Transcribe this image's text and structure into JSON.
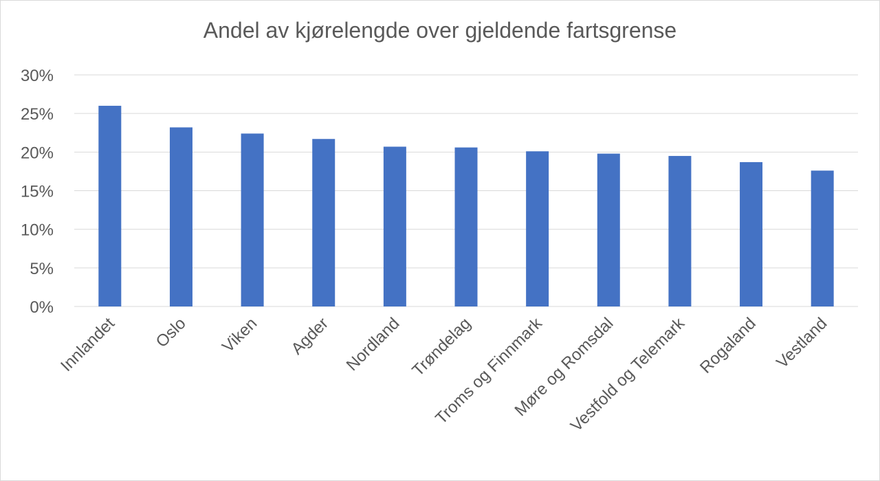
{
  "chart_data": {
    "type": "bar",
    "title": "Andel av kjørelengde over gjeldende fartsgrense",
    "categories": [
      "Innlandet",
      "Oslo",
      "Viken",
      "Agder",
      "Nordland",
      "Trøndelag",
      "Troms og Finnmark",
      "Møre og Romsdal",
      "Vestfold og Telemark",
      "Rogaland",
      "Vestland"
    ],
    "values": [
      26.0,
      23.2,
      22.4,
      21.7,
      20.7,
      20.6,
      20.1,
      19.8,
      19.5,
      18.7,
      17.6
    ],
    "ylim": [
      0,
      30
    ],
    "yticks": [
      0,
      5,
      10,
      15,
      20,
      25,
      30
    ],
    "ytick_labels": [
      "0%",
      "5%",
      "10%",
      "15%",
      "20%",
      "25%",
      "30%"
    ],
    "grid": true,
    "bar_color": "#4472c4",
    "legend": "none"
  }
}
